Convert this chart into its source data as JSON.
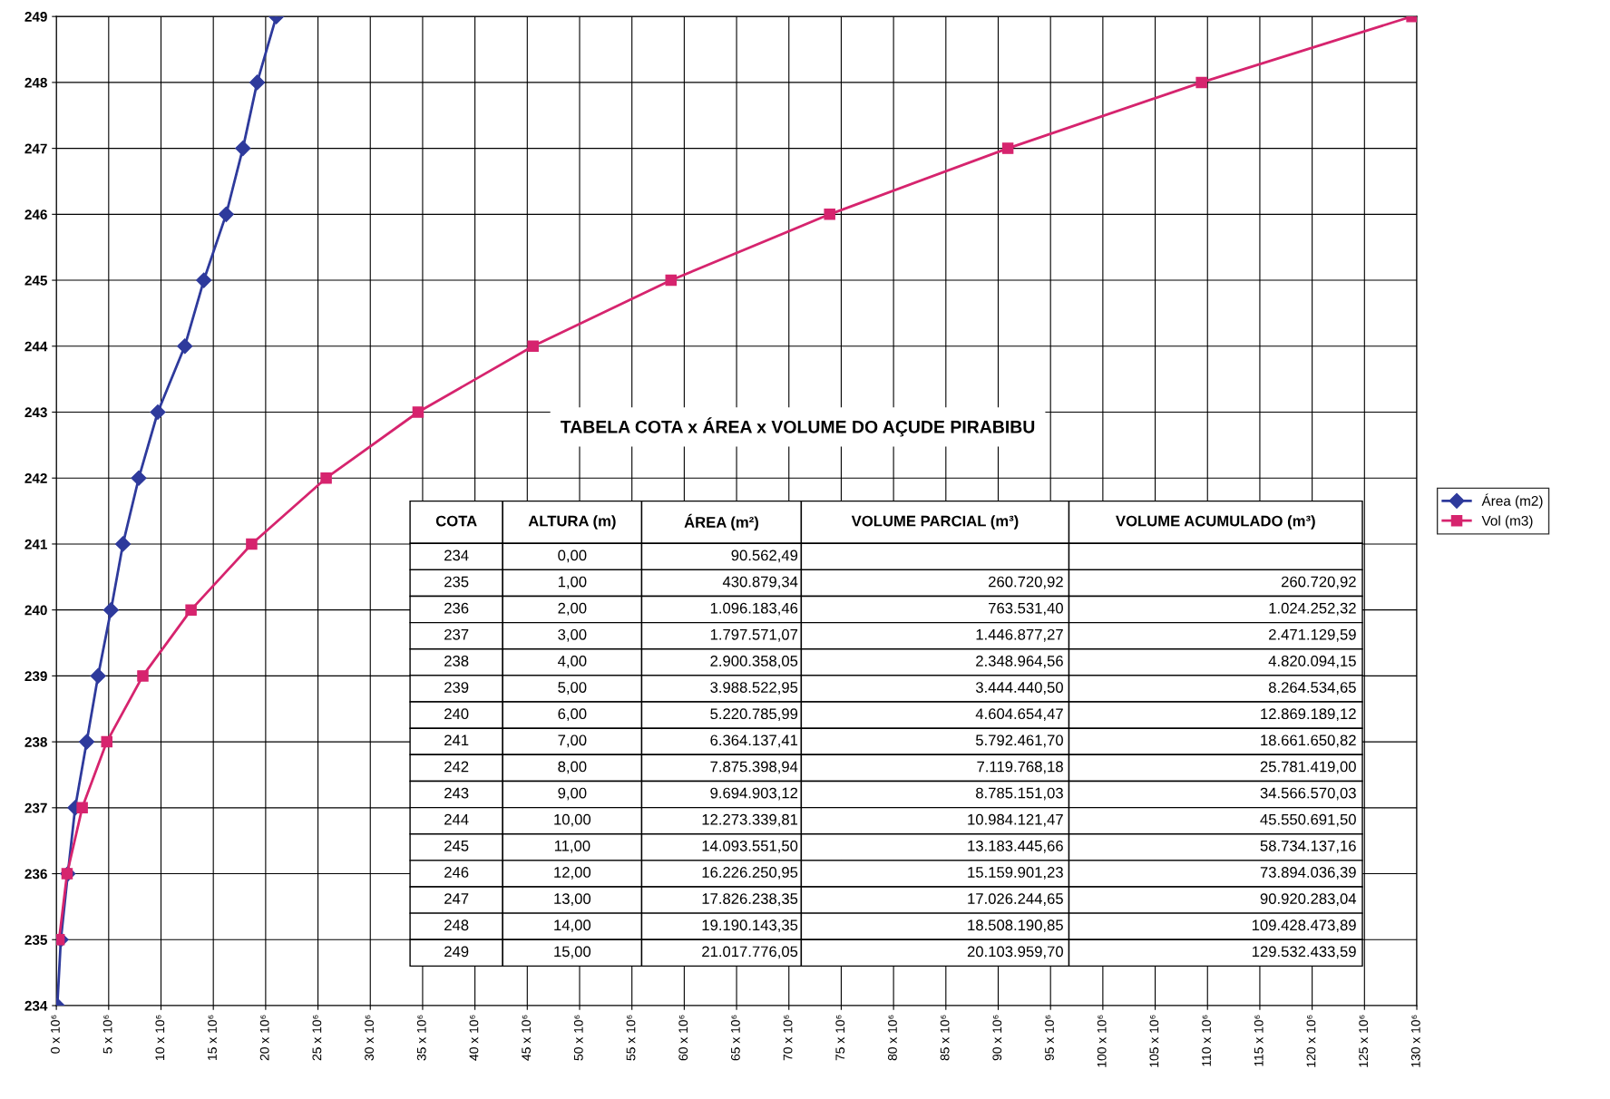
{
  "chart_data": {
    "type": "line",
    "series": [
      {
        "name": "Área (m2)",
        "color": "#2e3a9c",
        "marker": "diamond",
        "values": [
          234,
          235,
          236,
          237,
          238,
          239,
          240,
          241,
          242,
          243,
          244,
          245,
          246,
          247,
          248,
          249
        ],
        "x": [
          90562.49,
          430879.34,
          1096183.46,
          1797571.07,
          2900358.05,
          3988522.95,
          5220785.99,
          6364137.41,
          7875398.94,
          9694903.12,
          12273339.81,
          14093551.5,
          16226250.95,
          17826238.35,
          19190143.35,
          21017776.05
        ]
      },
      {
        "name": "Vol (m3)",
        "color": "#d6246e",
        "marker": "square",
        "values": [
          235,
          236,
          237,
          238,
          239,
          240,
          241,
          242,
          243,
          244,
          245,
          246,
          247,
          248,
          249
        ],
        "x": [
          260720.92,
          1024252.32,
          2471129.59,
          4820094.15,
          8264534.65,
          12869189.12,
          18661650.82,
          25781419.0,
          34566570.03,
          45550691.5,
          58734137.16,
          73894036.39,
          90920283.04,
          109428473.89,
          129532433.59
        ]
      }
    ],
    "xlim": [
      0,
      130000000
    ],
    "xticks": [
      {
        "value": 0,
        "label": "0 x 10⁶"
      },
      {
        "value": 5000000,
        "label": "5 x 10⁶"
      },
      {
        "value": 10000000,
        "label": "10 x 10⁶"
      },
      {
        "value": 15000000,
        "label": "15 x 10⁶"
      },
      {
        "value": 20000000,
        "label": "20 x 10⁶"
      },
      {
        "value": 25000000,
        "label": "25 x 10⁶"
      },
      {
        "value": 30000000,
        "label": "30 x 10⁶"
      },
      {
        "value": 35000000,
        "label": "35 x 10⁶"
      },
      {
        "value": 40000000,
        "label": "40 x 10⁶"
      },
      {
        "value": 45000000,
        "label": "45 x 10⁶"
      },
      {
        "value": 50000000,
        "label": "50 x 10⁶"
      },
      {
        "value": 55000000,
        "label": "55 x 10⁶"
      },
      {
        "value": 60000000,
        "label": "60 x 10⁶"
      },
      {
        "value": 65000000,
        "label": "65 x 10⁶"
      },
      {
        "value": 70000000,
        "label": "70 x 10⁶"
      },
      {
        "value": 75000000,
        "label": "75 x 10⁶"
      },
      {
        "value": 80000000,
        "label": "80 x 10⁶"
      },
      {
        "value": 85000000,
        "label": "85 x 10⁶"
      },
      {
        "value": 90000000,
        "label": "90 x 10⁶"
      },
      {
        "value": 95000000,
        "label": "95 x 10⁶"
      },
      {
        "value": 100000000,
        "label": "100 x 10⁶"
      },
      {
        "value": 105000000,
        "label": "105 x 10⁶"
      },
      {
        "value": 110000000,
        "label": "110 x 10⁶"
      },
      {
        "value": 115000000,
        "label": "115 x 10⁶"
      },
      {
        "value": 120000000,
        "label": "120 x 10⁶"
      },
      {
        "value": 125000000,
        "label": "125 x 10⁶"
      },
      {
        "value": 130000000,
        "label": "130 x 10⁶"
      }
    ],
    "ylim": [
      234,
      249
    ],
    "yticks": [
      234,
      235,
      236,
      237,
      238,
      239,
      240,
      241,
      242,
      243,
      244,
      245,
      246,
      247,
      248,
      249
    ],
    "grid": true,
    "legend": "right",
    "annotations": [
      "TABELA COTA x ÁREA x VOLUME DO AÇUDE PIRABIBU",
      "COTA",
      "ALTURA (m)",
      "ÁREA (m²)",
      "VOLUME PARCIAL (m³)",
      "VOLUME ACUMULADO (m³)",
      "234",
      "235",
      "236",
      "237",
      "238",
      "239",
      "240",
      "241",
      "242",
      "243",
      "244",
      "245",
      "246",
      "247",
      "248",
      "249",
      "0,00",
      "1,00",
      "2,00",
      "3,00",
      "4,00",
      "5,00",
      "6,00",
      "7,00",
      "8,00",
      "9,00",
      "10,00",
      "11,00",
      "12,00",
      "13,00",
      "14,00",
      "15,00",
      "90.562,49",
      "430.879,34",
      "1.096.183,46",
      "1.797.571,07",
      "2.900.358,05",
      "3.988.522,95",
      "5.220.785,99",
      "6.364.137,41",
      "7.875.398,94",
      "9.694.903,12",
      "12.273.339,81",
      "14.093.551,50",
      "16.226.250,95",
      "17.826.238,35",
      "19.190.143,35",
      "21.017.776,05",
      "260.720,92",
      "763.531,40",
      "1.446.877,27",
      "2.348.964,56",
      "3.444.440,50",
      "4.604.654,47",
      "5.792.461,70",
      "7.119.768,18",
      "8.785.151,03",
      "10.984.121,47",
      "13.183.445,66",
      "15.159.901,23",
      "17.026.244,65",
      "18.508.190,85",
      "20.103.959,70",
      "260.720,92",
      "1.024.252,32",
      "2.471.129,59",
      "4.820.094,15",
      "8.264.534,65",
      "12.869.189,12",
      "18.661.650,82",
      "25.781.419,00",
      "34.566.570,03",
      "45.550.691,50",
      "58.734.137,16",
      "73.894.036,39",
      "90.920.283,04",
      "109.428.473,89",
      "129.532.433,59"
    ]
  }
}
